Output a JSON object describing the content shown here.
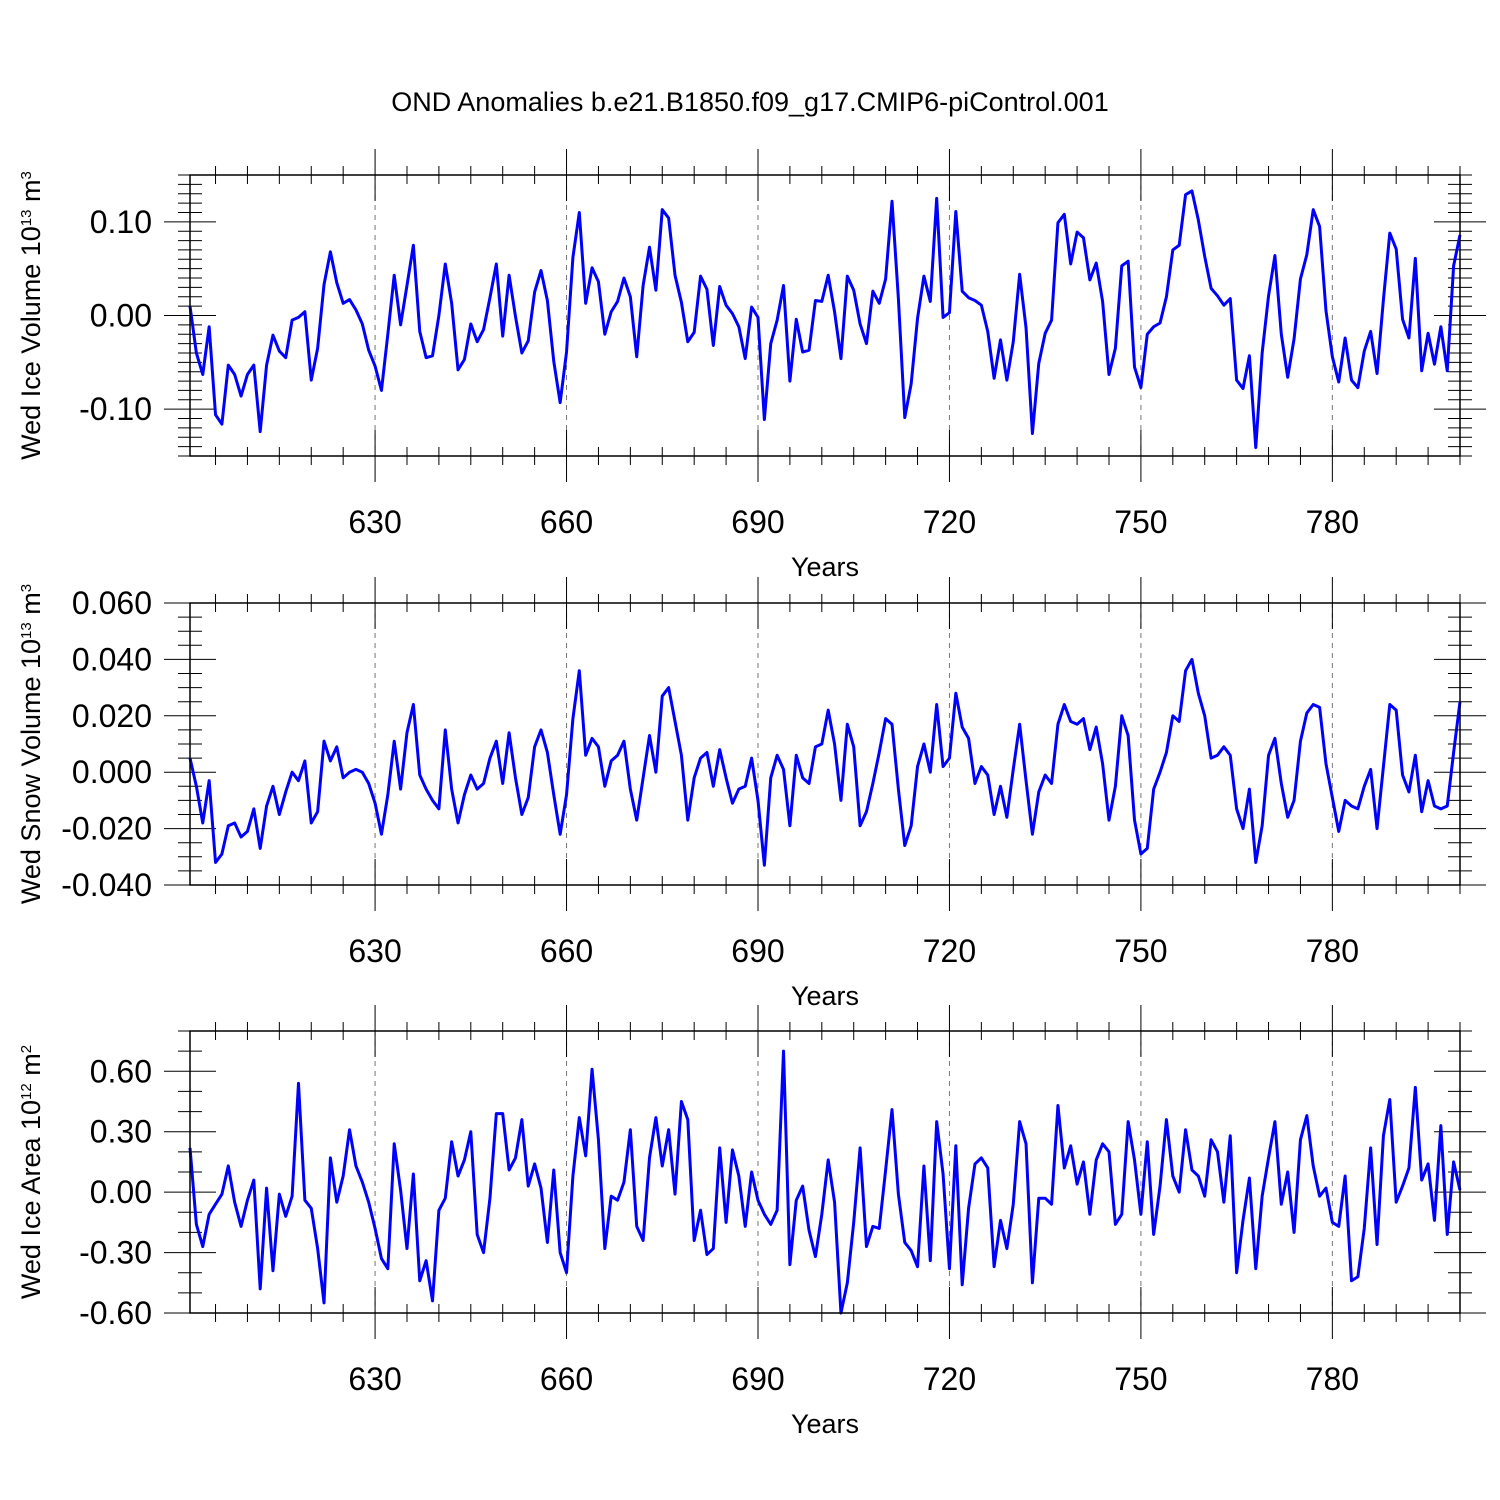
{
  "title": "OND Anomalies b.e21.B1850.f09_g17.CMIP6-piControl.001",
  "colors": {
    "series": "#0000ff",
    "axes": "#000000",
    "grid": "#777777"
  },
  "chart_data": [
    {
      "type": "line",
      "ylabel": {
        "main": "Wed Ice Volume 10",
        "exp": "13",
        "unit": " m",
        "unit_exp": "3"
      },
      "xlabel": "Years",
      "xlim": [
        601,
        800
      ],
      "ylim": [
        -0.15,
        0.15
      ],
      "x_ticks": [
        630,
        660,
        690,
        720,
        750,
        780
      ],
      "y_ticks": [
        -0.1,
        0.0,
        0.1
      ],
      "y_tick_labels": [
        "-0.10",
        "0.00",
        "0.10"
      ],
      "x_start": 601,
      "series": [
        {
          "name": "Wed Ice Volume",
          "values": [
            0.01,
            -0.04,
            -0.063,
            -0.012,
            -0.106,
            -0.116,
            -0.053,
            -0.063,
            -0.086,
            -0.063,
            -0.053,
            -0.124,
            -0.053,
            -0.021,
            -0.038,
            -0.045,
            -0.005,
            -0.002,
            0.004,
            -0.069,
            -0.035,
            0.033,
            0.068,
            0.035,
            0.013,
            0.017,
            0.006,
            -0.009,
            -0.037,
            -0.054,
            -0.08,
            -0.02,
            0.043,
            -0.01,
            0.032,
            0.075,
            -0.017,
            -0.045,
            -0.043,
            0.0,
            0.055,
            0.013,
            -0.058,
            -0.047,
            -0.009,
            -0.028,
            -0.015,
            0.019,
            0.055,
            -0.022,
            0.043,
            -0.001,
            -0.04,
            -0.027,
            0.025,
            0.048,
            0.016,
            -0.049,
            -0.093,
            -0.039,
            0.062,
            0.11,
            0.013,
            0.051,
            0.036,
            -0.02,
            0.004,
            0.015,
            0.04,
            0.02,
            -0.044,
            0.032,
            0.073,
            0.027,
            0.113,
            0.104,
            0.043,
            0.014,
            -0.028,
            -0.018,
            0.042,
            0.028,
            -0.032,
            0.031,
            0.011,
            0.002,
            -0.012,
            -0.046,
            0.009,
            -0.002,
            -0.111,
            -0.03,
            -0.005,
            0.032,
            -0.07,
            -0.004,
            -0.039,
            -0.037,
            0.016,
            0.015,
            0.043,
            0.004,
            -0.046,
            0.042,
            0.027,
            -0.009,
            -0.03,
            0.026,
            0.013,
            0.039,
            0.122,
            0.018,
            -0.109,
            -0.073,
            -0.003,
            0.042,
            0.015,
            0.125,
            -0.002,
            0.003,
            0.111,
            0.026,
            0.019,
            0.016,
            0.011,
            -0.017,
            -0.067,
            -0.026,
            -0.069,
            -0.028,
            0.044,
            -0.013,
            -0.126,
            -0.051,
            -0.019,
            -0.005,
            0.099,
            0.108,
            0.055,
            0.089,
            0.083,
            0.038,
            0.056,
            0.015,
            -0.063,
            -0.035,
            0.053,
            0.058,
            -0.055,
            -0.077,
            -0.02,
            -0.012,
            -0.008,
            0.02,
            0.07,
            0.075,
            0.129,
            0.133,
            0.102,
            0.063,
            0.029,
            0.021,
            0.011,
            0.018,
            -0.069,
            -0.078,
            -0.043,
            -0.141,
            -0.04,
            0.021,
            0.064,
            -0.02,
            -0.066,
            -0.025,
            0.039,
            0.065,
            0.113,
            0.095,
            0.005,
            -0.044,
            -0.071,
            -0.024,
            -0.069,
            -0.077,
            -0.038,
            -0.017,
            -0.062,
            0.017,
            0.088,
            0.071,
            -0.004,
            -0.024,
            0.061,
            -0.059,
            -0.019,
            -0.052,
            -0.012,
            -0.059,
            0.053,
            0.086
          ]
        }
      ]
    },
    {
      "type": "line",
      "ylabel": {
        "main": "Wed Snow Volume 10",
        "exp": "13",
        "unit": " m",
        "unit_exp": "3"
      },
      "xlabel": "Years",
      "xlim": [
        601,
        800
      ],
      "ylim": [
        -0.04,
        0.06
      ],
      "x_ticks": [
        630,
        660,
        690,
        720,
        750,
        780
      ],
      "y_ticks": [
        -0.04,
        -0.02,
        0.0,
        0.02,
        0.04,
        0.06
      ],
      "y_tick_labels": [
        "-0.040",
        "-0.020",
        "0.000",
        "0.020",
        "0.040",
        "0.060"
      ],
      "x_start": 601,
      "series": [
        {
          "name": "Wed Snow Volume",
          "values": [
            0.005,
            -0.005,
            -0.018,
            -0.003,
            -0.032,
            -0.029,
            -0.019,
            -0.018,
            -0.023,
            -0.021,
            -0.013,
            -0.027,
            -0.012,
            -0.005,
            -0.015,
            -0.007,
            0.0,
            -0.003,
            0.004,
            -0.018,
            -0.014,
            0.011,
            0.004,
            0.009,
            -0.002,
            0.0,
            0.001,
            0.0,
            -0.004,
            -0.011,
            -0.022,
            -0.008,
            0.011,
            -0.006,
            0.014,
            0.024,
            -0.001,
            -0.006,
            -0.01,
            -0.013,
            0.015,
            -0.006,
            -0.018,
            -0.008,
            -0.001,
            -0.006,
            -0.004,
            0.005,
            0.011,
            -0.004,
            0.014,
            -0.002,
            -0.015,
            -0.009,
            0.009,
            0.015,
            0.007,
            -0.008,
            -0.022,
            -0.008,
            0.019,
            0.036,
            0.006,
            0.012,
            0.009,
            -0.005,
            0.004,
            0.006,
            0.011,
            -0.006,
            -0.017,
            -0.002,
            0.013,
            0.0,
            0.027,
            0.03,
            0.018,
            0.006,
            -0.017,
            -0.002,
            0.005,
            0.007,
            -0.005,
            0.008,
            -0.002,
            -0.011,
            -0.006,
            -0.005,
            0.005,
            -0.01,
            -0.033,
            -0.002,
            0.006,
            0.001,
            -0.019,
            0.006,
            -0.002,
            -0.004,
            0.009,
            0.01,
            0.022,
            0.01,
            -0.01,
            0.017,
            0.009,
            -0.019,
            -0.014,
            -0.004,
            0.007,
            0.019,
            0.017,
            -0.006,
            -0.026,
            -0.019,
            0.002,
            0.01,
            0.0,
            0.024,
            0.002,
            0.005,
            0.028,
            0.016,
            0.012,
            -0.004,
            0.002,
            -0.001,
            -0.015,
            -0.005,
            -0.016,
            0.001,
            0.017,
            -0.003,
            -0.022,
            -0.007,
            -0.001,
            -0.004,
            0.017,
            0.024,
            0.018,
            0.017,
            0.019,
            0.008,
            0.016,
            0.003,
            -0.017,
            -0.005,
            0.02,
            0.013,
            -0.017,
            -0.029,
            -0.027,
            -0.006,
            0.0,
            0.007,
            0.02,
            0.018,
            0.036,
            0.04,
            0.028,
            0.02,
            0.005,
            0.006,
            0.009,
            0.006,
            -0.013,
            -0.02,
            -0.006,
            -0.032,
            -0.019,
            0.006,
            0.012,
            -0.004,
            -0.016,
            -0.01,
            0.011,
            0.021,
            0.024,
            0.023,
            0.003,
            -0.009,
            -0.021,
            -0.01,
            -0.012,
            -0.013,
            -0.005,
            0.001,
            -0.02,
            0.002,
            0.024,
            0.022,
            -0.001,
            -0.007,
            0.006,
            -0.014,
            -0.003,
            -0.012,
            -0.013,
            -0.012,
            0.007,
            0.025
          ]
        }
      ]
    },
    {
      "type": "line",
      "ylabel": {
        "main": "Wed Ice Area 10",
        "exp": "12",
        "unit": " m",
        "unit_exp": "2"
      },
      "xlabel": "Years",
      "xlim": [
        601,
        800
      ],
      "ylim": [
        -0.6,
        0.8
      ],
      "x_ticks": [
        630,
        660,
        690,
        720,
        750,
        780
      ],
      "y_ticks": [
        -0.6,
        -0.3,
        0.0,
        0.3,
        0.6
      ],
      "y_tick_labels": [
        "-0.60",
        "-0.30",
        "0.00",
        "0.30",
        "0.60"
      ],
      "x_start": 601,
      "series": [
        {
          "name": "Wed Ice Area",
          "values": [
            0.22,
            -0.16,
            -0.27,
            -0.11,
            -0.06,
            -0.01,
            0.13,
            -0.05,
            -0.17,
            -0.04,
            0.06,
            -0.48,
            0.02,
            -0.39,
            -0.01,
            -0.12,
            -0.02,
            0.54,
            -0.04,
            -0.08,
            -0.28,
            -0.55,
            0.17,
            -0.05,
            0.08,
            0.31,
            0.13,
            0.05,
            -0.05,
            -0.18,
            -0.33,
            -0.38,
            0.24,
            0.01,
            -0.28,
            0.09,
            -0.44,
            -0.34,
            -0.54,
            -0.09,
            -0.03,
            0.25,
            0.08,
            0.16,
            0.3,
            -0.21,
            -0.3,
            -0.03,
            0.39,
            0.39,
            0.11,
            0.17,
            0.36,
            0.03,
            0.14,
            0.02,
            -0.25,
            0.11,
            -0.3,
            -0.4,
            0.08,
            0.37,
            0.18,
            0.61,
            0.26,
            -0.28,
            -0.02,
            -0.04,
            0.05,
            0.31,
            -0.17,
            -0.24,
            0.17,
            0.37,
            0.13,
            0.31,
            -0.01,
            0.45,
            0.36,
            -0.24,
            -0.09,
            -0.31,
            -0.28,
            0.22,
            -0.15,
            0.21,
            0.08,
            -0.17,
            0.1,
            -0.04,
            -0.11,
            -0.16,
            -0.09,
            0.7,
            -0.36,
            -0.04,
            0.03,
            -0.19,
            -0.32,
            -0.11,
            0.16,
            -0.05,
            -0.6,
            -0.45,
            -0.15,
            0.22,
            -0.27,
            -0.17,
            -0.18,
            0.11,
            0.41,
            -0.01,
            -0.25,
            -0.29,
            -0.37,
            0.13,
            -0.34,
            0.35,
            0.09,
            -0.38,
            0.23,
            -0.46,
            -0.08,
            0.14,
            0.17,
            0.12,
            -0.37,
            -0.14,
            -0.28,
            -0.06,
            0.35,
            0.24,
            -0.45,
            -0.03,
            -0.03,
            -0.06,
            0.43,
            0.12,
            0.23,
            0.04,
            0.15,
            -0.11,
            0.16,
            0.24,
            0.2,
            -0.16,
            -0.11,
            0.35,
            0.16,
            -0.11,
            0.25,
            -0.21,
            0.03,
            0.36,
            0.08,
            0.0,
            0.31,
            0.11,
            0.08,
            -0.02,
            0.26,
            0.2,
            -0.05,
            0.28,
            -0.4,
            -0.14,
            0.07,
            -0.38,
            -0.02,
            0.17,
            0.35,
            -0.06,
            0.1,
            -0.2,
            0.26,
            0.38,
            0.13,
            -0.02,
            0.02,
            -0.15,
            -0.17,
            0.08,
            -0.44,
            -0.42,
            -0.18,
            0.22,
            -0.26,
            0.28,
            0.46,
            -0.05,
            0.03,
            0.12,
            0.52,
            0.06,
            0.14,
            -0.14,
            0.33,
            -0.21,
            0.15,
            0.01
          ]
        }
      ]
    }
  ]
}
